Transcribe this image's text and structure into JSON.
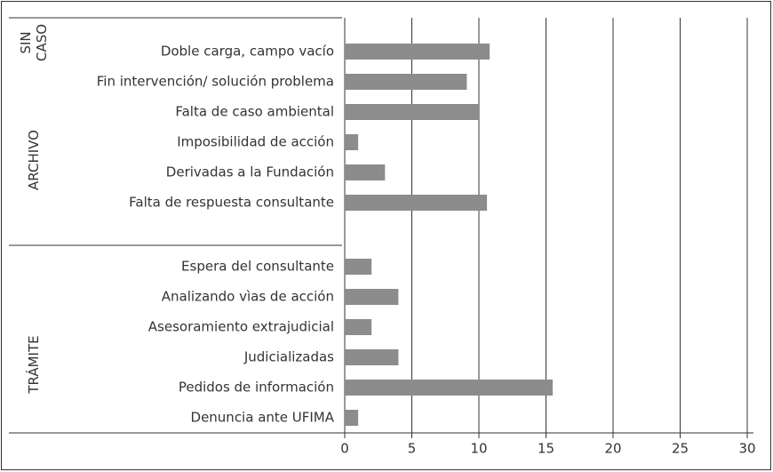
{
  "chart_data": {
    "type": "bar",
    "orientation": "horizontal",
    "color": "#8c8c8c",
    "groups": [
      {
        "label": [
          "SIN",
          "CASO"
        ],
        "categories": [
          "Doble carga, campo vacío"
        ],
        "values": [
          10.8
        ]
      },
      {
        "label": [
          "ARCHIVO"
        ],
        "categories": [
          "Fin intervención/ solución problema",
          "Falta de caso ambiental",
          "Imposibilidad de acción",
          "Derivadas a la Fundación",
          "Falta de respuesta consultante"
        ],
        "values": [
          9.1,
          10,
          1,
          3,
          10.6
        ]
      },
      {
        "label": [
          "TRÁMITE"
        ],
        "categories": [
          "Espera del consultante",
          "Analizando vìas de acción",
          "Asesoramiento extrajudicial",
          "Judicializadas",
          "Pedidos de información",
          "Denuncia ante UFIMA"
        ],
        "values": [
          2,
          4,
          2,
          4,
          15.5,
          1
        ]
      }
    ],
    "xlim": [
      0,
      30
    ],
    "xticks": [
      0,
      5,
      10,
      15,
      20,
      25,
      30
    ],
    "grid": true
  }
}
